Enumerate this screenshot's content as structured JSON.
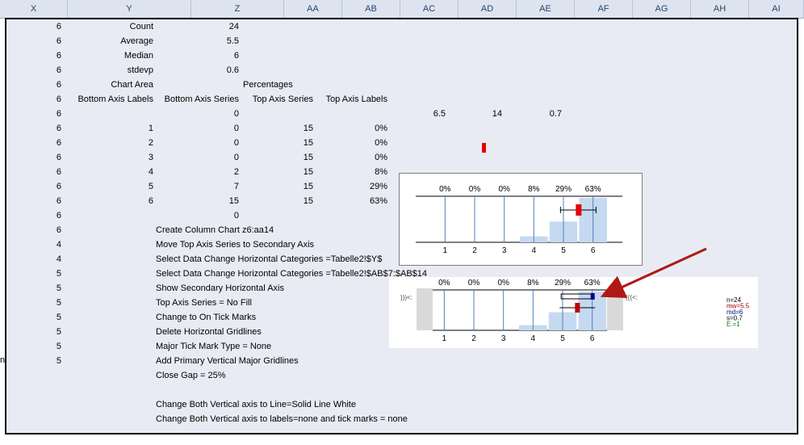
{
  "column_headers": [
    "X",
    "Y",
    "Z",
    "AA",
    "AB",
    "AC",
    "AD",
    "AE",
    "AF",
    "AG",
    "AH",
    "AI"
  ],
  "left_edge_fragment": "n",
  "summary": [
    {
      "x": "6",
      "label": "Count",
      "value": "24"
    },
    {
      "x": "6",
      "label": "Average",
      "value": "5.5"
    },
    {
      "x": "6",
      "label": "Median",
      "value": "6"
    },
    {
      "x": "6",
      "label": "stdevp",
      "value": "0.6"
    }
  ],
  "chart_area_row": {
    "x": "6",
    "label": "Chart Area",
    "aa": "Percentages"
  },
  "header_row": {
    "x": "6",
    "y": "Bottom Axis Labels",
    "z": "Bottom Axis Series",
    "aa": "Top Axis Series",
    "ab": "Top Axis Labels"
  },
  "zero_row": {
    "x": "6",
    "z": "0",
    "ac": "6.5",
    "ad": "14",
    "ae": "0.7"
  },
  "data_rows": [
    {
      "x": "6",
      "y": "1",
      "z": "0",
      "aa": "15",
      "ab": "0%"
    },
    {
      "x": "6",
      "y": "2",
      "z": "0",
      "aa": "15",
      "ab": "0%"
    },
    {
      "x": "6",
      "y": "3",
      "z": "0",
      "aa": "15",
      "ab": "0%"
    },
    {
      "x": "6",
      "y": "4",
      "z": "2",
      "aa": "15",
      "ab": "8%"
    },
    {
      "x": "6",
      "y": "5",
      "z": "7",
      "aa": "15",
      "ab": "29%"
    },
    {
      "x": "6",
      "y": "6",
      "z": "15",
      "aa": "15",
      "ab": "63%"
    }
  ],
  "last_zero_row": {
    "x": "6",
    "z": "0"
  },
  "instructions": [
    {
      "x": "6",
      "text": "Create Column Chart z6:aa14"
    },
    {
      "x": "4",
      "text": "Move Top Axis Series to Secondary Axis"
    },
    {
      "x": "4",
      "text": "Select Data Change Horizontal Categories =Tabelle2!$Y$"
    },
    {
      "x": "5",
      "text": "Select Data Change Horizontal Categories =Tabelle2!$AB$7:$AB$14"
    },
    {
      "x": "5",
      "text": "Show Secondary Horizontal Axis"
    },
    {
      "x": "5",
      "text": "Top Axis Series = No Fill"
    },
    {
      "x": "5",
      "text": "Change to On Tick Marks"
    },
    {
      "x": "5",
      "text": "Delete Horizontal Gridlines"
    },
    {
      "x": "5",
      "text": "Major Tick Mark Type = None"
    },
    {
      "x": "5",
      "text": "Add Primary Vertical Major Gridlines"
    },
    {
      "x": "",
      "text": "Close Gap = 25%"
    },
    {
      "x": "",
      "text": ""
    },
    {
      "x": "",
      "text": "Change Both Vertical axis to Line=Solid Line White"
    },
    {
      "x": "",
      "text": "Change Both Vertical axis to labels=none and tick marks = none"
    }
  ],
  "chart_data": [
    {
      "type": "bar",
      "categories": [
        "1",
        "2",
        "3",
        "4",
        "5",
        "6"
      ],
      "values": [
        0,
        0,
        0,
        2,
        7,
        15
      ],
      "top_labels": [
        "0%",
        "0%",
        "0%",
        "8%",
        "29%",
        "63%"
      ],
      "ylim": [
        0,
        15
      ],
      "markers": {
        "mean": 5.5,
        "median": 6,
        "whisker": [
          4.9,
          6.1
        ]
      },
      "colors": {
        "bar": "#c5d9f1",
        "gridline": "#4f81bd",
        "median": "#e60000"
      }
    },
    {
      "type": "bar",
      "categories": [
        "1",
        "2",
        "3",
        "4",
        "5",
        "6"
      ],
      "values": [
        0,
        0,
        0,
        2,
        7,
        15
      ],
      "top_labels": [
        "0%",
        "0%",
        "0%",
        "8%",
        "29%",
        "63%"
      ],
      "ylim": [
        0,
        15
      ],
      "side_left": ")))<:",
      "side_right": "(((<:",
      "stats": [
        {
          "text": "n=24",
          "color": "#000000"
        },
        {
          "text": "mw=5.5",
          "color": "#a00000"
        },
        {
          "text": "md=6",
          "color": "#000080"
        },
        {
          "text": "s=0.7",
          "color": "#000000"
        },
        {
          "text": "E.=1",
          "color": "#008000"
        }
      ]
    }
  ],
  "colors": {
    "arrow": "#b01818",
    "marker": "#e60000",
    "header": "#dde4ef",
    "sheet": "#e9ebf4"
  }
}
